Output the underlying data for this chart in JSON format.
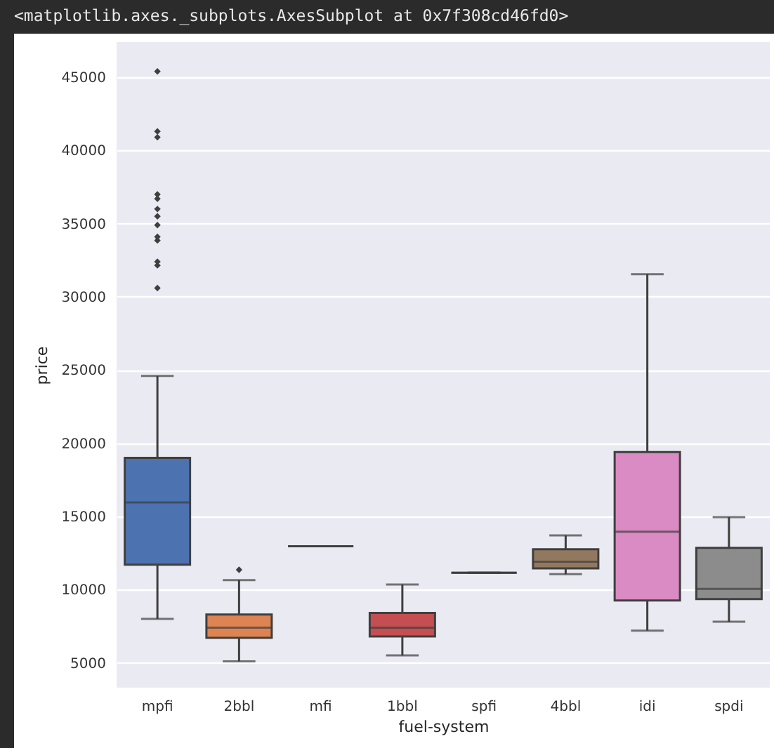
{
  "chart_data": {
    "type": "box",
    "xlabel": "fuel-system",
    "ylabel": "price",
    "annotations": [
      "<matplotlib.axes._subplots.AxesSubplot at 0x7f308cd46fd0>"
    ],
    "categories": [
      "mpfi",
      "2bbl",
      "mfi",
      "1bbl",
      "spfi",
      "4bbl",
      "idi",
      "spdi"
    ],
    "colors": [
      "#4c72b0",
      "#dd8452",
      "#3f3f3f",
      "#c44e52",
      "#3f3f3f",
      "#937860",
      "#da8bc3",
      "#8c8c8c"
    ],
    "boxes": [
      {
        "low": 8000,
        "q1": 11700,
        "median": 15950,
        "q3": 19000,
        "high": 24600,
        "outliers": [
          30600,
          32150,
          32400,
          33850,
          34100,
          34900,
          35500,
          36000,
          36700,
          37000,
          40900,
          41300,
          45400
        ]
      },
      {
        "low": 5100,
        "q1": 6700,
        "median": 7400,
        "q3": 8300,
        "high": 10650,
        "outliers": [
          11350
        ]
      },
      {
        "low": 12960,
        "q1": 12960,
        "median": 12960,
        "q3": 12960,
        "high": 12960
      },
      {
        "low": 5500,
        "q1": 6800,
        "median": 7400,
        "q3": 8400,
        "high": 10350
      },
      {
        "low": 11150,
        "q1": 11150,
        "median": 11150,
        "q3": 11150,
        "high": 11150
      },
      {
        "low": 11050,
        "q1": 11450,
        "median": 11900,
        "q3": 12750,
        "high": 13700
      },
      {
        "low": 7200,
        "q1": 9250,
        "median": 13950,
        "q3": 19400,
        "high": 31550
      },
      {
        "low": 7800,
        "q1": 9350,
        "median": 10050,
        "q3": 12850,
        "high": 14950
      }
    ],
    "ylim": [
      3300,
      47400
    ],
    "yticks": [
      5000,
      10000,
      15000,
      20000,
      25000,
      30000,
      35000,
      40000,
      45000
    ],
    "grid": "y",
    "marker": "diamond"
  }
}
